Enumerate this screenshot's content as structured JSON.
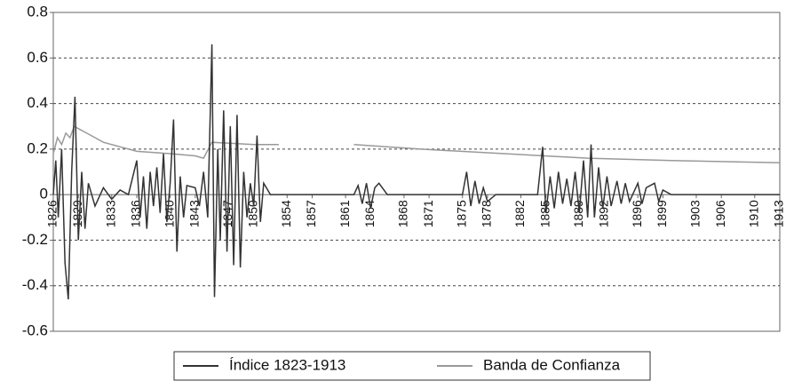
{
  "chart_data": {
    "type": "line",
    "xlim": [
      1826,
      1913
    ],
    "xticks": [
      1826,
      1829,
      1833,
      1836,
      1840,
      1843,
      1847,
      1850,
      1854,
      1857,
      1861,
      1864,
      1868,
      1871,
      1875,
      1878,
      1882,
      1885,
      1889,
      1892,
      1896,
      1899,
      1903,
      1906,
      1910,
      1913
    ],
    "ylim": [
      -0.6,
      0.8
    ],
    "yticks": [
      -0.6,
      -0.4,
      -0.2,
      0,
      0.2,
      0.4,
      0.6,
      0.8
    ],
    "grid": true,
    "legend": "bottom",
    "series": [
      {
        "name": "Índice 1823-1913",
        "color": "#333333",
        "x": [
          1826,
          1826.3,
          1826.6,
          1827,
          1827.4,
          1827.8,
          1828.2,
          1828.6,
          1829,
          1829.4,
          1829.8,
          1830.2,
          1831,
          1832,
          1833,
          1834,
          1835,
          1836,
          1836.4,
          1836.8,
          1837.2,
          1837.6,
          1838,
          1838.4,
          1838.8,
          1839.2,
          1839.6,
          1840,
          1840.4,
          1840.8,
          1841.2,
          1841.6,
          1842,
          1843,
          1843.5,
          1844,
          1844.5,
          1845,
          1845.3,
          1845.7,
          1846,
          1846.4,
          1846.8,
          1847.2,
          1847.6,
          1848,
          1848.4,
          1848.8,
          1849.2,
          1849.6,
          1850,
          1850.4,
          1850.8,
          1851.2,
          1852,
          1862,
          1862.5,
          1863,
          1863.5,
          1864,
          1864.5,
          1865,
          1866,
          1875,
          1875.5,
          1876,
          1876.5,
          1877,
          1877.5,
          1878,
          1879,
          1884,
          1884.6,
          1885,
          1885.5,
          1886,
          1886.5,
          1887,
          1887.5,
          1888,
          1888.5,
          1889,
          1889.5,
          1890,
          1890.4,
          1890.8,
          1891.3,
          1891.8,
          1892.3,
          1892.8,
          1893.5,
          1894,
          1894.5,
          1895,
          1896,
          1896.5,
          1897,
          1898,
          1898.5,
          1899,
          1900,
          1913
        ],
        "values": [
          0,
          0.15,
          -0.1,
          0.2,
          -0.3,
          -0.46,
          0.1,
          0.43,
          -0.2,
          0.1,
          -0.15,
          0.05,
          -0.05,
          0.03,
          -0.02,
          0.02,
          0,
          0.15,
          -0.1,
          0.08,
          -0.15,
          0.1,
          -0.05,
          0.12,
          -0.08,
          0.18,
          -0.12,
          0.05,
          0.33,
          -0.25,
          0.08,
          -0.1,
          0.04,
          0.03,
          -0.05,
          0.1,
          -0.1,
          0.66,
          -0.45,
          0.2,
          -0.2,
          0.37,
          -0.25,
          0.3,
          -0.31,
          0.35,
          -0.32,
          0.1,
          -0.1,
          0.05,
          -0.05,
          0.26,
          -0.12,
          0.05,
          0,
          0,
          0.04,
          -0.04,
          0.05,
          -0.06,
          0.03,
          0.05,
          0,
          0,
          0.1,
          -0.05,
          0.06,
          -0.04,
          0.03,
          -0.03,
          0,
          0,
          0.21,
          -0.08,
          0.08,
          -0.06,
          0.1,
          -0.04,
          0.07,
          -0.05,
          0.1,
          -0.08,
          0.15,
          -0.1,
          0.22,
          -0.1,
          0.12,
          -0.06,
          0.08,
          -0.05,
          0.06,
          -0.04,
          0.05,
          -0.03,
          0.05,
          -0.04,
          0.03,
          0.05,
          -0.03,
          0.02,
          0,
          0
        ]
      },
      {
        "name": "Banda de Confianza",
        "color": "#999999",
        "x": [
          1826,
          1826.5,
          1827,
          1827.5,
          1828,
          1828.5,
          1829,
          1830,
          1831,
          1832,
          1834,
          1836,
          1840,
          1843,
          1844,
          1845,
          1850,
          1853,
          1857,
          1862,
          1870,
          1880,
          1890,
          1900,
          1913
        ],
        "values": [
          0.18,
          0.25,
          0.22,
          0.27,
          0.25,
          0.3,
          0.29,
          0.27,
          0.25,
          0.23,
          0.21,
          0.19,
          0.18,
          0.17,
          0.16,
          0.23,
          0.22,
          0.22,
          null,
          0.22,
          0.2,
          0.18,
          0.16,
          0.15,
          0.14
        ]
      }
    ]
  }
}
